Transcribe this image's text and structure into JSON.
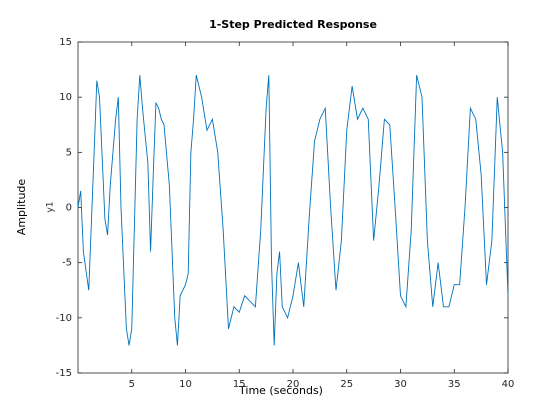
{
  "chart_data": {
    "type": "line",
    "title": "1-Step Predicted Response",
    "x_label": "Time (seconds)",
    "y_label": "Amplitude",
    "y_sublabel": "y1",
    "x": [
      0,
      0.25,
      0.5,
      1,
      1.5,
      1.75,
      2,
      2.5,
      2.75,
      3,
      3.5,
      3.75,
      4,
      4.5,
      4.75,
      5,
      5.5,
      5.75,
      6,
      6.5,
      6.75,
      7,
      7.25,
      7.5,
      7.75,
      8,
      8.5,
      9,
      9.25,
      9.5,
      10,
      10.25,
      10.5,
      10.75,
      11,
      11.5,
      12,
      12.5,
      13,
      13.5,
      14,
      14.5,
      15,
      15.5,
      16,
      16.5,
      17,
      17.5,
      17.75,
      18,
      18.25,
      18.5,
      18.75,
      19,
      19.5,
      20,
      20.5,
      21,
      21.5,
      22,
      22.5,
      23,
      23.5,
      24,
      24.5,
      25,
      25.5,
      26,
      26.5,
      27,
      27.5,
      28,
      28.5,
      29,
      29.5,
      30,
      30.5,
      31,
      31.5,
      32,
      32.5,
      33,
      33.5,
      34,
      34.5,
      35,
      35.5,
      36,
      36.5,
      37,
      37.5,
      38,
      38.5,
      39,
      39.5,
      40
    ],
    "series": [
      {
        "name": "y1",
        "color": "#0072bd",
        "values": [
          0,
          1.5,
          -4,
          -7.5,
          5,
          11.5,
          10,
          -1,
          -2.5,
          2,
          8,
          10,
          0,
          -11,
          -12.5,
          -11,
          8,
          12,
          9,
          4,
          -4,
          3,
          9.5,
          9,
          8,
          7.5,
          2,
          -10,
          -12.5,
          -8,
          -7,
          -6,
          5,
          8,
          12,
          10,
          7,
          8,
          5,
          -2,
          -11,
          -9,
          -9.5,
          -8,
          -8.5,
          -9,
          -2,
          9,
          12,
          -5,
          -12.5,
          -6,
          -4,
          -9,
          -10,
          -8,
          -5,
          -9,
          -1,
          6,
          8,
          9,
          0,
          -7.5,
          -3,
          7,
          11,
          8,
          9,
          8,
          -3,
          2,
          8,
          7.5,
          0,
          -8,
          -9,
          -2,
          12,
          10,
          -3,
          -9,
          -5,
          -9,
          -9,
          -7,
          -7,
          0,
          9,
          8,
          3,
          -7,
          -3,
          10,
          5,
          -8
        ]
      }
    ],
    "xlim": [
      0,
      40
    ],
    "xticks": [
      5,
      10,
      15,
      20,
      25,
      30,
      35,
      40
    ],
    "ylim": [
      -15,
      15
    ],
    "yticks": [
      -15,
      -10,
      -5,
      0,
      5,
      10,
      15
    ],
    "grid": false
  }
}
